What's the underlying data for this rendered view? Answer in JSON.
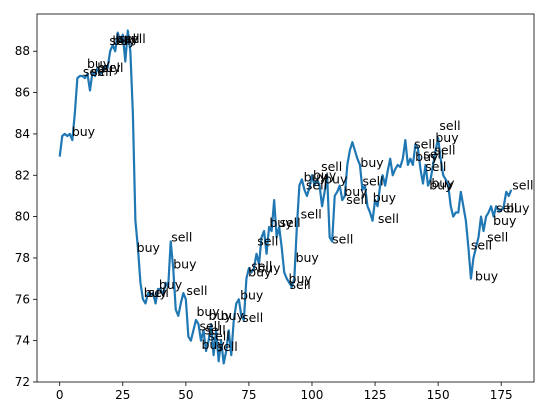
{
  "chart_data": {
    "type": "line",
    "x": [
      0,
      1,
      2,
      3,
      4,
      5,
      6,
      7,
      8,
      9,
      10,
      11,
      12,
      13,
      14,
      15,
      16,
      17,
      18,
      19,
      20,
      21,
      22,
      23,
      24,
      25,
      26,
      27,
      28,
      29,
      30,
      31,
      32,
      33,
      34,
      35,
      36,
      37,
      38,
      39,
      40,
      41,
      42,
      43,
      44,
      45,
      46,
      47,
      48,
      49,
      50,
      51,
      52,
      53,
      54,
      55,
      56,
      57,
      58,
      59,
      60,
      61,
      62,
      63,
      64,
      65,
      66,
      67,
      68,
      69,
      70,
      71,
      72,
      73,
      74,
      75,
      76,
      77,
      78,
      79,
      80,
      81,
      82,
      83,
      84,
      85,
      86,
      87,
      88,
      89,
      90,
      91,
      92,
      93,
      94,
      95,
      96,
      97,
      98,
      99,
      100,
      101,
      102,
      103,
      104,
      105,
      106,
      107,
      108,
      109,
      110,
      111,
      112,
      113,
      114,
      115,
      116,
      117,
      118,
      119,
      120,
      121,
      122,
      123,
      124,
      125,
      126,
      127,
      128,
      129,
      130,
      131,
      132,
      133,
      134,
      135,
      136,
      137,
      138,
      139,
      140,
      141,
      142,
      143,
      144,
      145,
      146,
      147,
      148,
      149,
      150,
      151,
      152,
      153,
      154,
      155,
      156,
      157,
      158,
      159,
      160,
      161,
      162,
      163,
      164,
      165,
      166,
      167,
      168,
      169,
      170,
      171,
      172,
      173,
      174,
      175,
      176,
      177,
      178,
      179
    ],
    "series": [
      {
        "color": "#1f77b4",
        "values": [
          82.9,
          83.9,
          84.0,
          83.9,
          84.0,
          83.7,
          85.0,
          86.7,
          86.8,
          86.8,
          86.7,
          86.9,
          86.1,
          87.0,
          86.8,
          87.2,
          86.9,
          87.0,
          87.3,
          87.2,
          88.0,
          88.3,
          88.0,
          88.9,
          88.5,
          88.8,
          87.5,
          89.0,
          88.0,
          85.0,
          79.8,
          78.5,
          76.8,
          76.0,
          75.8,
          76.3,
          76.2,
          76.3,
          75.8,
          76.5,
          76.5,
          76.2,
          76.8,
          76.6,
          78.8,
          77.5,
          75.5,
          75.2,
          75.8,
          76.3,
          76.0,
          74.2,
          74.0,
          74.5,
          75.0,
          74.8,
          74.0,
          74.5,
          73.5,
          74.0,
          74.8,
          73.3,
          74.5,
          73.0,
          74.0,
          72.9,
          73.5,
          74.5,
          73.3,
          75.0,
          75.8,
          76.0,
          75.2,
          75.0,
          77.0,
          77.5,
          77.3,
          77.5,
          78.2,
          77.7,
          79.0,
          79.3,
          78.2,
          79.5,
          79.3,
          80.8,
          79.0,
          79.5,
          78.5,
          77.3,
          77.0,
          76.8,
          76.6,
          77.0,
          79.5,
          81.5,
          81.8,
          81.3,
          81.0,
          81.4,
          82.0,
          81.5,
          81.8,
          81.5,
          80.5,
          81.2,
          82.0,
          79.0,
          78.8,
          81.0,
          81.2,
          81.5,
          80.8,
          81.0,
          82.5,
          83.2,
          83.6,
          83.2,
          82.8,
          82.5,
          81.3,
          81.5,
          80.5,
          80.2,
          79.8,
          80.8,
          80.5,
          81.5,
          82.0,
          81.5,
          82.2,
          82.8,
          82.0,
          82.3,
          82.5,
          82.4,
          82.8,
          83.7,
          82.5,
          82.8,
          82.5,
          83.5,
          83.3,
          82.3,
          81.6,
          82.5,
          81.5,
          81.8,
          82.5,
          83.2,
          83.8,
          82.8,
          82.0,
          81.8,
          81.5,
          80.5,
          80.0,
          80.2,
          80.2,
          81.2,
          80.5,
          79.8,
          78.5,
          77.0,
          78.0,
          78.5,
          79.0,
          80.0,
          79.3,
          80.0,
          80.2,
          80.5,
          80.0,
          80.5,
          80.3,
          80.3,
          80.5,
          81.2,
          81.0,
          81.3
        ]
      }
    ],
    "annotations": [
      {
        "text": "buy",
        "x": 4.8,
        "y": 83.9
      },
      {
        "text": "sell",
        "x": 9.2,
        "y": 86.8
      },
      {
        "text": "buy",
        "x": 10.8,
        "y": 87.2
      },
      {
        "text": "sell",
        "x": 12.4,
        "y": 86.8
      },
      {
        "text": "buy",
        "x": 14.9,
        "y": 87.0
      },
      {
        "text": "sell",
        "x": 16.9,
        "y": 87.0
      },
      {
        "text": "sell",
        "x": 19.7,
        "y": 88.3
      },
      {
        "text": "buy",
        "x": 20.9,
        "y": 88.3
      },
      {
        "text": "buy",
        "x": 22.1,
        "y": 88.4
      },
      {
        "text": "sell",
        "x": 23.3,
        "y": 88.4
      },
      {
        "text": "sell",
        "x": 25.7,
        "y": 88.4
      },
      {
        "text": "buy",
        "x": 30.5,
        "y": 78.3
      },
      {
        "text": "buy",
        "x": 33.3,
        "y": 76.1
      },
      {
        "text": "sell",
        "x": 34.9,
        "y": 76.1
      },
      {
        "text": "buy",
        "x": 39.3,
        "y": 76.5
      },
      {
        "text": "sell",
        "x": 44.2,
        "y": 78.8
      },
      {
        "text": "buy",
        "x": 45.0,
        "y": 77.5
      },
      {
        "text": "sell",
        "x": 50.2,
        "y": 76.2
      },
      {
        "text": "buy",
        "x": 54.2,
        "y": 75.2
      },
      {
        "text": "sell",
        "x": 55.4,
        "y": 74.5
      },
      {
        "text": "sell",
        "x": 57.4,
        "y": 74.3
      },
      {
        "text": "buy",
        "x": 59.0,
        "y": 75.0
      },
      {
        "text": "sell",
        "x": 59.0,
        "y": 74.0
      },
      {
        "text": "buy",
        "x": 63.8,
        "y": 75.0
      },
      {
        "text": "buy",
        "x": 56.2,
        "y": 73.6
      },
      {
        "text": "sell",
        "x": 62.2,
        "y": 73.5
      },
      {
        "text": "sell",
        "x": 72.3,
        "y": 74.9
      },
      {
        "text": "buy",
        "x": 71.5,
        "y": 76.0
      },
      {
        "text": "sell",
        "x": 75.9,
        "y": 77.4
      },
      {
        "text": "buy",
        "x": 74.7,
        "y": 77.1
      },
      {
        "text": "buy",
        "x": 78.3,
        "y": 77.3
      },
      {
        "text": "sell",
        "x": 78.3,
        "y": 78.6
      },
      {
        "text": "buy",
        "x": 83.1,
        "y": 79.5
      },
      {
        "text": "sell",
        "x": 87.1,
        "y": 79.5
      },
      {
        "text": "sell",
        "x": 95.5,
        "y": 79.9
      },
      {
        "text": "buy",
        "x": 93.5,
        "y": 77.8
      },
      {
        "text": "buy",
        "x": 90.7,
        "y": 76.8
      },
      {
        "text": "sell",
        "x": 91.1,
        "y": 76.5
      },
      {
        "text": "buy",
        "x": 96.7,
        "y": 81.7
      },
      {
        "text": "sell",
        "x": 97.6,
        "y": 81.3
      },
      {
        "text": "buy",
        "x": 100.4,
        "y": 81.8
      },
      {
        "text": "buy",
        "x": 104.8,
        "y": 81.6
      },
      {
        "text": "sell",
        "x": 103.6,
        "y": 82.2
      },
      {
        "text": "sell",
        "x": 108.0,
        "y": 78.7
      },
      {
        "text": "buy",
        "x": 112.8,
        "y": 81.0
      },
      {
        "text": "buy",
        "x": 119.2,
        "y": 82.4
      },
      {
        "text": "sell",
        "x": 120.0,
        "y": 81.5
      },
      {
        "text": "sell",
        "x": 113.6,
        "y": 80.6
      },
      {
        "text": "buy",
        "x": 124.1,
        "y": 80.7
      },
      {
        "text": "sell",
        "x": 126.1,
        "y": 79.7
      },
      {
        "text": "sell",
        "x": 140.5,
        "y": 83.3
      },
      {
        "text": "buy",
        "x": 140.9,
        "y": 82.7
      },
      {
        "text": "sell",
        "x": 144.9,
        "y": 82.2
      },
      {
        "text": "buy",
        "x": 146.5,
        "y": 81.3
      },
      {
        "text": "sell",
        "x": 144.1,
        "y": 82.8
      },
      {
        "text": "sell",
        "x": 150.5,
        "y": 84.2
      },
      {
        "text": "buy",
        "x": 148.9,
        "y": 83.6
      },
      {
        "text": "sell",
        "x": 148.5,
        "y": 83.0
      },
      {
        "text": "buy",
        "x": 147.3,
        "y": 81.4
      },
      {
        "text": "sell",
        "x": 163.0,
        "y": 78.4
      },
      {
        "text": "buy",
        "x": 164.6,
        "y": 76.9
      },
      {
        "text": "sell",
        "x": 169.4,
        "y": 78.8
      },
      {
        "text": "buy",
        "x": 171.8,
        "y": 79.6
      },
      {
        "text": "sell",
        "x": 173.0,
        "y": 80.2
      },
      {
        "text": "buy",
        "x": 177.0,
        "y": 80.2
      },
      {
        "text": "sell",
        "x": 179.4,
        "y": 81.3
      }
    ],
    "xlim": [
      -9,
      188
    ],
    "xticks": [
      0,
      25,
      50,
      75,
      100,
      125,
      150,
      175
    ],
    "ylim": [
      72,
      89.8
    ],
    "yticks": [
      72,
      74,
      76,
      78,
      80,
      82,
      84,
      86,
      88
    ]
  }
}
